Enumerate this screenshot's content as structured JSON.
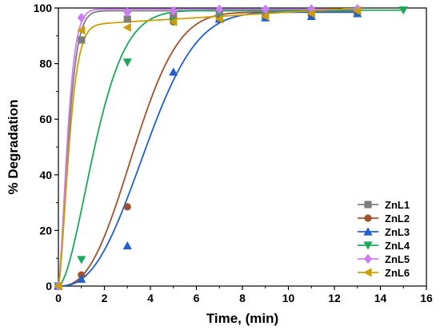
{
  "chart_data": {
    "type": "scatter",
    "title": "",
    "xlabel": "Time, (min)",
    "ylabel": "% Degradation",
    "xlim": [
      0,
      16
    ],
    "ylim": [
      0,
      100
    ],
    "x_ticks": [
      0,
      2,
      4,
      6,
      8,
      10,
      12,
      14,
      16
    ],
    "y_ticks": [
      0,
      20,
      40,
      60,
      80,
      100
    ],
    "grid": false,
    "legend_position": "bottom-right",
    "series": [
      {
        "name": "ZnL1",
        "color": "#7f7f7f",
        "marker": "square",
        "x": [
          0,
          1,
          3,
          5,
          7,
          9,
          11,
          13
        ],
        "y": [
          0,
          88.5,
          96,
          97,
          98,
          98.5,
          99,
          99
        ],
        "fit_rate": 1.9,
        "fit_order": 1.5,
        "fit_max": 99
      },
      {
        "name": "ZnL2",
        "color": "#a0522d",
        "marker": "circle",
        "x": [
          0,
          1,
          3,
          5,
          7,
          9,
          11,
          13
        ],
        "y": [
          0,
          4,
          28.5,
          95,
          95.8,
          96.5,
          97.5,
          98
        ],
        "fit_rate": 0.2627,
        "fit_order": 2.5,
        "fit_max": 98.5
      },
      {
        "name": "ZnL3",
        "color": "#1f5fd0",
        "marker": "triangle-up",
        "x": [
          0,
          1,
          3,
          5,
          7,
          9,
          11,
          13
        ],
        "y": [
          0,
          2.5,
          14.5,
          77,
          96,
          96.5,
          97,
          98
        ],
        "fit_rate": 0.2283,
        "fit_order": 2.5,
        "fit_max": 98.5
      },
      {
        "name": "ZnL4",
        "color": "#1aa85a",
        "marker": "triangle-down",
        "x": [
          0,
          1,
          3,
          5,
          7,
          9,
          11,
          13,
          15
        ],
        "y": [
          0,
          9.5,
          80.5,
          95,
          98.5,
          98.8,
          99,
          99,
          99.2
        ],
        "fit_rate": 0.5144,
        "fit_order": 1.7,
        "fit_max": 99.2
      },
      {
        "name": "ZnL5",
        "color": "#cc7df2",
        "marker": "diamond",
        "x": [
          0,
          1,
          3,
          5,
          7,
          9,
          11,
          13
        ],
        "y": [
          0,
          96.5,
          98.5,
          99,
          99.5,
          99.5,
          99.6,
          99.7
        ],
        "fit_rate": 2.1,
        "fit_order": 1.5,
        "fit_max": 99.6
      },
      {
        "name": "ZnL6",
        "color": "#c9a000",
        "marker": "triangle-left",
        "x": [
          0,
          1,
          3,
          5,
          7,
          9,
          11,
          13
        ],
        "y": [
          0,
          92,
          93,
          95,
          96,
          97,
          98,
          99
        ],
        "fit_rate": 1.8,
        "fit_order": 1.5,
        "fit_max": 93.5,
        "fit_slope": 0.5
      }
    ]
  }
}
